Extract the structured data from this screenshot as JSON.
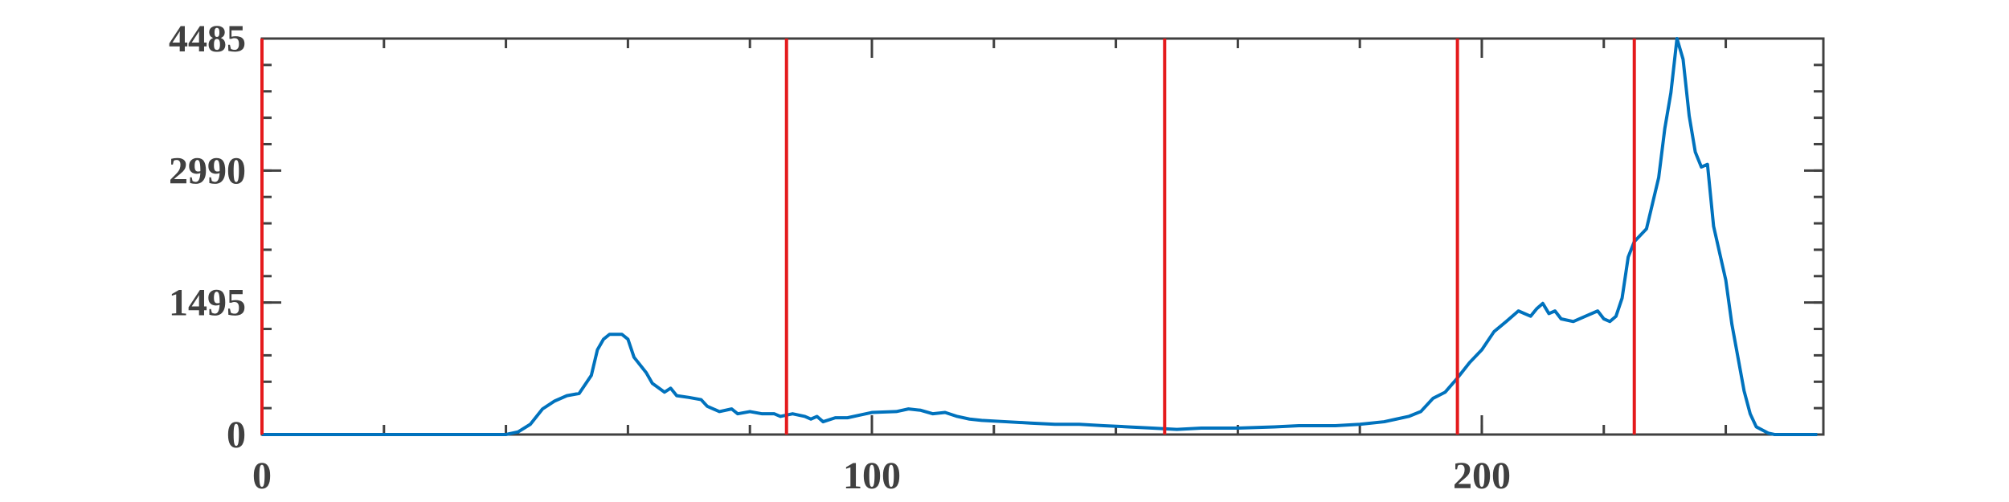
{
  "chart_data": {
    "type": "line",
    "x": [
      0,
      39,
      40,
      42,
      44,
      46,
      48,
      50,
      52,
      54,
      55,
      56,
      57,
      59,
      60,
      61,
      63,
      64,
      66,
      67,
      68,
      70,
      72,
      73,
      75,
      77,
      78,
      80,
      82,
      84,
      85,
      87,
      89,
      90,
      91,
      92,
      94,
      96,
      98,
      100,
      104,
      106,
      108,
      110,
      112,
      114,
      116,
      118,
      122,
      126,
      130,
      134,
      138,
      142,
      146,
      150,
      154,
      160,
      166,
      170,
      176,
      180,
      184,
      186,
      188,
      190,
      192,
      194,
      196,
      198,
      200,
      202,
      204,
      206,
      208,
      209,
      210,
      211,
      212,
      213,
      215,
      217,
      219,
      220,
      221,
      222,
      223,
      224,
      225,
      227,
      229,
      230,
      231,
      232,
      233,
      234,
      235,
      236,
      237,
      238,
      240,
      241,
      243,
      244,
      245,
      247,
      248,
      255
    ],
    "series": [
      {
        "color": "#0072bd",
        "values": [
          0,
          0,
          0,
          30,
          116,
          290,
          380,
          440,
          465,
          670,
          960,
          1080,
          1135,
          1135,
          1080,
          875,
          700,
          580,
          480,
          525,
          440,
          420,
          395,
          320,
          260,
          290,
          235,
          260,
          235,
          235,
          205,
          235,
          205,
          175,
          205,
          145,
          190,
          190,
          220,
          250,
          260,
          290,
          275,
          235,
          250,
          205,
          175,
          160,
          145,
          130,
          116,
          116,
          100,
          87,
          73,
          58,
          73,
          73,
          87,
          100,
          100,
          116,
          145,
          175,
          205,
          260,
          410,
          480,
          640,
          815,
          960,
          1165,
          1280,
          1400,
          1340,
          1425,
          1485,
          1370,
          1400,
          1310,
          1280,
          1340,
          1400,
          1310,
          1280,
          1340,
          1545,
          2010,
          2185,
          2330,
          2910,
          3465,
          3870,
          4485,
          4250,
          3610,
          3200,
          3030,
          3060,
          2360,
          1750,
          1250,
          495,
          235,
          87,
          15,
          0,
          0
        ]
      }
    ],
    "vlines": [
      0,
      86,
      148,
      196,
      225
    ],
    "vline_color": "#e41a1c",
    "xlim": [
      0,
      256
    ],
    "ylim": [
      0,
      4485
    ],
    "xticks": [
      0,
      100,
      200
    ],
    "yticks": [
      0,
      1495,
      2990,
      4485
    ]
  }
}
